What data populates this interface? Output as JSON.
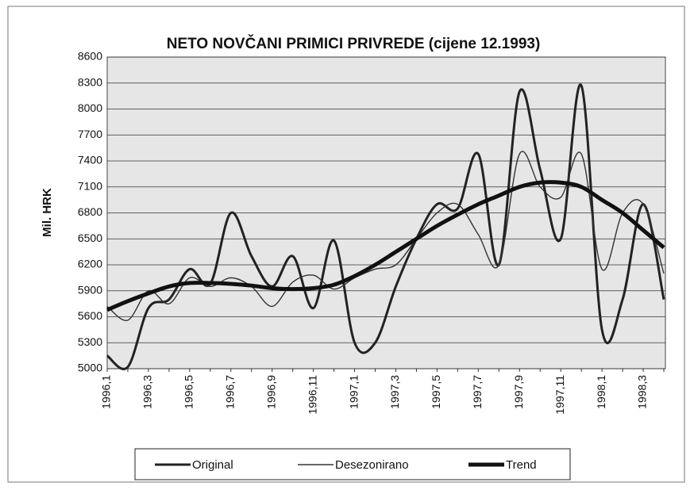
{
  "chart_data": {
    "type": "line",
    "title": "NETO NOVČANI PRIMICI PRIVREDE (cijene 12.1993)",
    "y_label": "Mil. HRK",
    "categories": [
      "1996,1",
      null,
      "1996,3",
      null,
      "1996,5",
      null,
      "1996,7",
      null,
      "1996,9",
      null,
      "1996,11",
      null,
      "1997,1",
      null,
      "1997,3",
      null,
      "1997,5",
      null,
      "1997,7",
      null,
      "1997,9",
      null,
      "1997,11",
      null,
      "1998,1",
      null,
      "1998,3",
      null
    ],
    "series": [
      {
        "name": "Original",
        "color": "#222222",
        "values": [
          5150,
          5020,
          5700,
          5800,
          6150,
          5980,
          6800,
          6300,
          5950,
          6300,
          5700,
          6480,
          5300,
          5300,
          5950,
          6500,
          6900,
          6850,
          7480,
          6200,
          8200,
          7300,
          6500,
          8270,
          5450,
          5800,
          6900,
          5800
        ]
      },
      {
        "name": "Desezonirano",
        "color": "#333333",
        "values": [
          5720,
          5560,
          5900,
          5750,
          6050,
          5950,
          6050,
          5950,
          5720,
          6000,
          6080,
          5920,
          6050,
          6150,
          6200,
          6500,
          6800,
          6900,
          6550,
          6200,
          7480,
          7100,
          6980,
          7480,
          6150,
          6800,
          6900,
          6100
        ]
      },
      {
        "name": "Trend",
        "color": "#111111",
        "values": [
          5680,
          5780,
          5870,
          5950,
          5990,
          5990,
          5980,
          5960,
          5930,
          5920,
          5930,
          5970,
          6070,
          6200,
          6350,
          6500,
          6650,
          6780,
          6900,
          7000,
          7100,
          7150,
          7150,
          7100,
          6950,
          6800,
          6600,
          6400
        ]
      }
    ],
    "ylim": [
      5000,
      8600
    ],
    "yticks": [
      5000,
      5300,
      5600,
      5900,
      6200,
      6500,
      6800,
      7100,
      7400,
      7700,
      8000,
      8300,
      8600
    ],
    "grid": true
  }
}
